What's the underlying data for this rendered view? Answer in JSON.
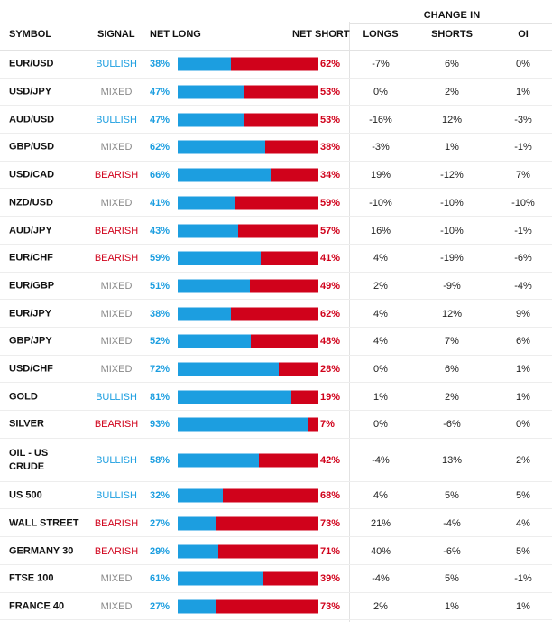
{
  "header": {
    "change_in": "CHANGE IN",
    "symbol": "SYMBOL",
    "signal": "SIGNAL",
    "net_long": "NET LONG",
    "net_short": "NET SHORT",
    "longs": "LONGS",
    "shorts": "SHORTS",
    "oi": "OI"
  },
  "colors": {
    "long": "#1c9ee0",
    "short": "#d0021b",
    "mixed": "#888888"
  },
  "rows": [
    {
      "symbol": "EUR/USD",
      "signal": "BULLISH",
      "type": "bullish",
      "net_long": "38%",
      "net_short": "62%",
      "long_pct": 38,
      "longs": "-7%",
      "shorts": "6%",
      "oi": "0%"
    },
    {
      "symbol": "USD/JPY",
      "signal": "MIXED",
      "type": "mixed",
      "net_long": "47%",
      "net_short": "53%",
      "long_pct": 47,
      "longs": "0%",
      "shorts": "2%",
      "oi": "1%"
    },
    {
      "symbol": "AUD/USD",
      "signal": "BULLISH",
      "type": "bullish",
      "net_long": "47%",
      "net_short": "53%",
      "long_pct": 47,
      "longs": "-16%",
      "shorts": "12%",
      "oi": "-3%"
    },
    {
      "symbol": "GBP/USD",
      "signal": "MIXED",
      "type": "mixed",
      "net_long": "62%",
      "net_short": "38%",
      "long_pct": 62,
      "longs": "-3%",
      "shorts": "1%",
      "oi": "-1%"
    },
    {
      "symbol": "USD/CAD",
      "signal": "BEARISH",
      "type": "bearish",
      "net_long": "66%",
      "net_short": "34%",
      "long_pct": 66,
      "longs": "19%",
      "shorts": "-12%",
      "oi": "7%"
    },
    {
      "symbol": "NZD/USD",
      "signal": "MIXED",
      "type": "mixed",
      "net_long": "41%",
      "net_short": "59%",
      "long_pct": 41,
      "longs": "-10%",
      "shorts": "-10%",
      "oi": "-10%"
    },
    {
      "symbol": "AUD/JPY",
      "signal": "BEARISH",
      "type": "bearish",
      "net_long": "43%",
      "net_short": "57%",
      "long_pct": 43,
      "longs": "16%",
      "shorts": "-10%",
      "oi": "-1%"
    },
    {
      "symbol": "EUR/CHF",
      "signal": "BEARISH",
      "type": "bearish",
      "net_long": "59%",
      "net_short": "41%",
      "long_pct": 59,
      "longs": "4%",
      "shorts": "-19%",
      "oi": "-6%"
    },
    {
      "symbol": "EUR/GBP",
      "signal": "MIXED",
      "type": "mixed",
      "net_long": "51%",
      "net_short": "49%",
      "long_pct": 51,
      "longs": "2%",
      "shorts": "-9%",
      "oi": "-4%"
    },
    {
      "symbol": "EUR/JPY",
      "signal": "MIXED",
      "type": "mixed",
      "net_long": "38%",
      "net_short": "62%",
      "long_pct": 38,
      "longs": "4%",
      "shorts": "12%",
      "oi": "9%"
    },
    {
      "symbol": "GBP/JPY",
      "signal": "MIXED",
      "type": "mixed",
      "net_long": "52%",
      "net_short": "48%",
      "long_pct": 52,
      "longs": "4%",
      "shorts": "7%",
      "oi": "6%"
    },
    {
      "symbol": "USD/CHF",
      "signal": "MIXED",
      "type": "mixed",
      "net_long": "72%",
      "net_short": "28%",
      "long_pct": 72,
      "longs": "0%",
      "shorts": "6%",
      "oi": "1%"
    },
    {
      "symbol": "GOLD",
      "signal": "BULLISH",
      "type": "bullish",
      "net_long": "81%",
      "net_short": "19%",
      "long_pct": 81,
      "longs": "1%",
      "shorts": "2%",
      "oi": "1%"
    },
    {
      "symbol": "SILVER",
      "signal": "BEARISH",
      "type": "bearish",
      "net_long": "93%",
      "net_short": "7%",
      "long_pct": 93,
      "longs": "0%",
      "shorts": "-6%",
      "oi": "0%"
    },
    {
      "symbol": "OIL - US CRUDE",
      "signal": "BULLISH",
      "type": "bullish",
      "net_long": "58%",
      "net_short": "42%",
      "long_pct": 58,
      "longs": "-4%",
      "shorts": "13%",
      "oi": "2%"
    },
    {
      "symbol": "US 500",
      "signal": "BULLISH",
      "type": "bullish",
      "net_long": "32%",
      "net_short": "68%",
      "long_pct": 32,
      "longs": "4%",
      "shorts": "5%",
      "oi": "5%"
    },
    {
      "symbol": "WALL STREET",
      "signal": "BEARISH",
      "type": "bearish",
      "net_long": "27%",
      "net_short": "73%",
      "long_pct": 27,
      "longs": "21%",
      "shorts": "-4%",
      "oi": "4%"
    },
    {
      "symbol": "GERMANY 30",
      "signal": "BEARISH",
      "type": "bearish",
      "net_long": "29%",
      "net_short": "71%",
      "long_pct": 29,
      "longs": "40%",
      "shorts": "-6%",
      "oi": "5%"
    },
    {
      "symbol": "FTSE 100",
      "signal": "MIXED",
      "type": "mixed",
      "net_long": "61%",
      "net_short": "39%",
      "long_pct": 61,
      "longs": "-4%",
      "shorts": "5%",
      "oi": "-1%"
    },
    {
      "symbol": "FRANCE 40",
      "signal": "MIXED",
      "type": "mixed",
      "net_long": "27%",
      "net_short": "73%",
      "long_pct": 27,
      "longs": "2%",
      "shorts": "1%",
      "oi": "1%"
    }
  ]
}
